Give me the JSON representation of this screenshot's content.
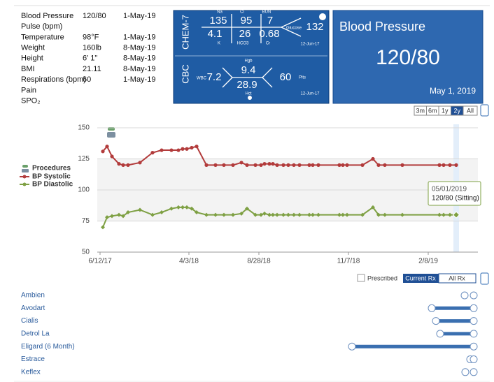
{
  "vitals": {
    "rows": [
      [
        "Blood Pressure",
        "120/80",
        "1-May-19"
      ],
      [
        "Pulse (bpm)"
      ],
      [
        "Temperature",
        "98°F",
        "1-May-19"
      ],
      [
        "Weight",
        "160lb",
        "8-May-19"
      ],
      [
        "Height",
        "6' 1\"",
        "8-May-19"
      ],
      [
        "BMI",
        "21.11",
        "8-May-19"
      ],
      [
        "Respirations (bpm)",
        "60",
        "1-May-19"
      ],
      [
        "Pain"
      ],
      [
        "SPO₂"
      ]
    ]
  },
  "chem7": {
    "title": "CHEM-7",
    "na_label": "Na",
    "na": 135,
    "cl_label": "Cl",
    "cl": 95,
    "bun_label": "BUN",
    "bun": 7,
    "k_label": "K",
    "k": 4.1,
    "hco3_label": "HCO3",
    "hco3": 26,
    "cr_label": "Cr",
    "cr": 0.68,
    "glucose_label": "Glucose",
    "glucose": 132,
    "date": "12-Jun-17"
  },
  "cbc": {
    "title": "CBC",
    "wbc_label": "WBC",
    "wbc": 7.2,
    "hgb_label": "Hgb",
    "hgb": 9.4,
    "hct_label": "Hct",
    "hct": 28.9,
    "plts_label": "Plts",
    "plts": 60,
    "date": "12-Jun-17"
  },
  "bp_card": {
    "title": "Blood Pressure",
    "value": "120/80",
    "date": "May 1, 2019"
  },
  "range_buttons": [
    "3m",
    "6m",
    "1y",
    "2y",
    "All"
  ],
  "chart_data": {
    "type": "line",
    "procedures": {
      "name": "Procedures"
    },
    "x": [
      4,
      10,
      17,
      27,
      33,
      40,
      57,
      75,
      88,
      102,
      112,
      118,
      124,
      131,
      138,
      152,
      165,
      177,
      190,
      202,
      210,
      222,
      230,
      235,
      242,
      247,
      253,
      262,
      269,
      277,
      285,
      299,
      304,
      312,
      342,
      347,
      353,
      375,
      390,
      398,
      407,
      432,
      485,
      491,
      500,
      509
    ],
    "series": [
      {
        "name": "BP Systolic",
        "color": "#b23b3b",
        "values": [
          131,
          135,
          127,
          121,
          120,
          120,
          122,
          130,
          132,
          132,
          132,
          133,
          133,
          134,
          135,
          120,
          120,
          120,
          120,
          122,
          120,
          120,
          120,
          121,
          121,
          121,
          120,
          120,
          120,
          120,
          120,
          120,
          120,
          120,
          120,
          120,
          120,
          120,
          125,
          120,
          120,
          120,
          120,
          120,
          120,
          120
        ]
      },
      {
        "name": "BP Diastolic",
        "color": "#7ea043",
        "values": [
          70,
          78,
          79,
          80,
          79,
          82,
          84,
          80,
          82,
          85,
          86,
          86,
          86,
          85,
          82,
          80,
          80,
          80,
          80,
          81,
          85,
          80,
          80,
          81,
          80,
          80,
          80,
          80,
          80,
          80,
          80,
          80,
          80,
          80,
          80,
          80,
          80,
          80,
          86,
          80,
          80,
          80,
          80,
          80,
          80,
          80
        ]
      }
    ],
    "xlim": [
      -4,
      540
    ],
    "xticks": [
      {
        "value": 0,
        "label": "6/12/17"
      },
      {
        "value": 127,
        "label": "4/3/18"
      },
      {
        "value": 227,
        "label": "8/28/18"
      },
      {
        "value": 355,
        "label": "11/7/18"
      },
      {
        "value": 469,
        "label": "2/8/19"
      }
    ],
    "ylim": [
      50,
      150
    ],
    "yticks": [
      50,
      75,
      100,
      125,
      150
    ],
    "grid": true,
    "tooltip": {
      "date": "05/01/2019",
      "text": "120/80 (Sitting)"
    }
  },
  "rx_controls": {
    "checkbox": "Prescribed",
    "current": "Current Rx",
    "all": "All Rx"
  },
  "medications": [
    "Ambien",
    "Avodart",
    "Cialis",
    "Detrol La",
    "Eligard (6 Month)",
    "Estrace",
    "Keflex"
  ]
}
